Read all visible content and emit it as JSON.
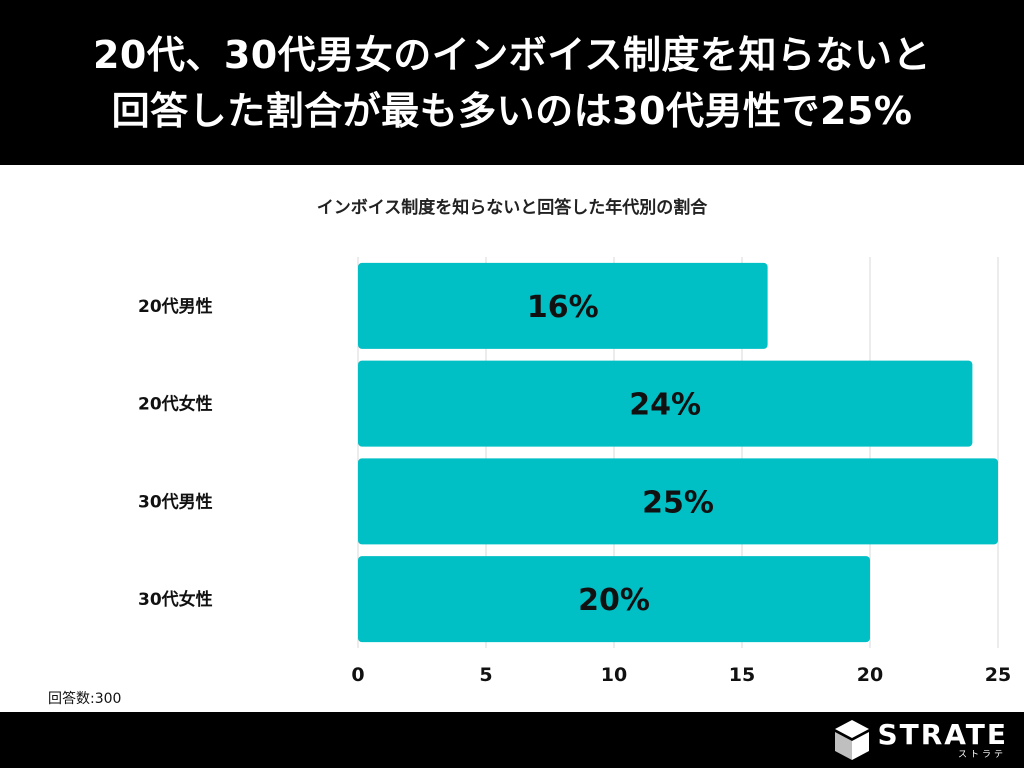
{
  "header": {
    "line1": "20代、30代男女のインボイス制度を知らないと",
    "line2": "回答した割合が最も多いのは30代男性で25%"
  },
  "chart_data": {
    "type": "bar",
    "orientation": "horizontal",
    "title": "インボイス制度を知らないと回答した年代別の割合",
    "categories": [
      "20代男性",
      "20代女性",
      "30代男性",
      "30代女性"
    ],
    "values": [
      16,
      24,
      25,
      20
    ],
    "value_labels": [
      "16%",
      "24%",
      "25%",
      "20%"
    ],
    "xlim": [
      0,
      25
    ],
    "xticks": [
      0,
      5,
      10,
      15,
      20,
      25
    ],
    "grid": true,
    "bar_color": "#00BFC5"
  },
  "note": "回答数:300",
  "brand": {
    "name": "STRATE",
    "kana": "ストラテ"
  }
}
